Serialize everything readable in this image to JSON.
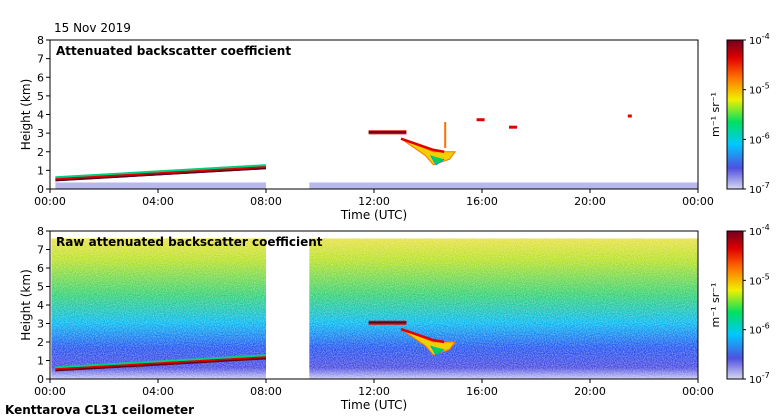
{
  "header": {
    "date": "15 Nov 2019"
  },
  "footer": {
    "caption": "Kenttarova CL31 ceilometer"
  },
  "colorbar": {
    "ticks": [
      "10^-4",
      "10^-5",
      "10^-6",
      "10^-7"
    ],
    "exponents": [
      "-4",
      "-5",
      "-6",
      "-7"
    ],
    "unit_label": "m⁻¹ sr⁻¹",
    "colors": [
      "#d8d8f0",
      "#5050e0",
      "#00c8ff",
      "#00e060",
      "#f0f000",
      "#ff7000",
      "#e00000",
      "#700020"
    ]
  },
  "chart_data": [
    {
      "type": "heatmap",
      "title": "Attenuated backscatter coefficient",
      "xlabel": "Time (UTC)",
      "ylabel": "Height (km)",
      "xlim": [
        0,
        24
      ],
      "ylim": [
        0,
        8
      ],
      "xticks": [
        "00:00",
        "04:00",
        "08:00",
        "12:00",
        "16:00",
        "20:00",
        "00:00"
      ],
      "yticks": [
        0,
        1,
        2,
        3,
        4,
        5,
        6,
        7,
        8
      ],
      "gaps": [
        [
          8.0,
          9.6
        ]
      ],
      "features": [
        {
          "name": "boundary layer",
          "t": [
            0.2,
            8.0
          ],
          "h": [
            0.45,
            1.15
          ]
        },
        {
          "name": "cloud layer",
          "t": [
            11.8,
            13.2
          ],
          "h": [
            3.0,
            3.1
          ]
        },
        {
          "name": "precipitation",
          "t": [
            13.0,
            15.0
          ],
          "h": [
            1.2,
            2.8
          ]
        }
      ]
    },
    {
      "type": "heatmap",
      "title": "Raw attenuated backscatter coefficient",
      "xlabel": "Time (UTC)",
      "ylabel": "Height (km)",
      "xlim": [
        0,
        24
      ],
      "ylim": [
        0,
        8
      ],
      "xticks": [
        "00:00",
        "04:00",
        "08:00",
        "12:00",
        "16:00",
        "20:00",
        "00:00"
      ],
      "yticks": [
        0,
        1,
        2,
        3,
        4,
        5,
        6,
        7,
        8
      ],
      "gaps": [
        [
          8.0,
          9.6
        ]
      ],
      "features": [
        {
          "name": "boundary layer",
          "t": [
            0.2,
            8.0
          ],
          "h": [
            0.45,
            1.15
          ]
        },
        {
          "name": "cloud layer",
          "t": [
            11.8,
            13.2
          ],
          "h": [
            3.0,
            3.1
          ]
        },
        {
          "name": "precipitation",
          "t": [
            13.0,
            15.0
          ],
          "h": [
            1.2,
            2.8
          ]
        }
      ]
    }
  ]
}
